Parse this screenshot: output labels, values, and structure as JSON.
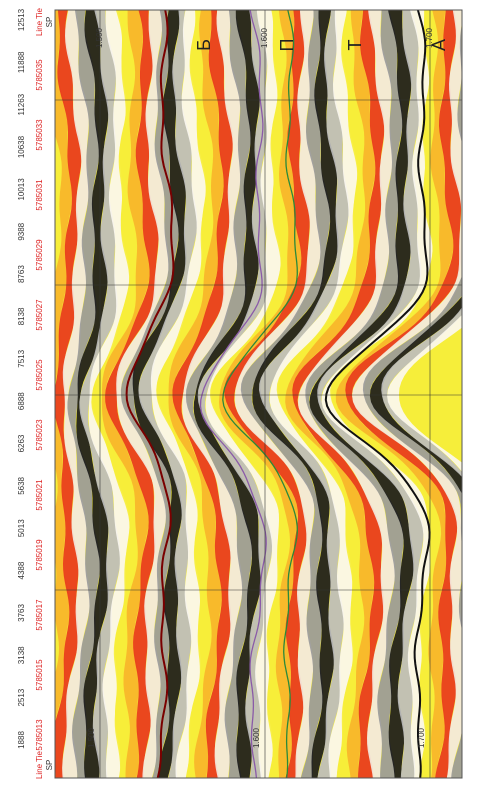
{
  "header_top": {
    "label": "Line Tie",
    "sp": "SP"
  },
  "header_bottom": {
    "label": "Line Tie",
    "sp": "SP"
  },
  "lines": [
    "5785013",
    "5785015",
    "5785017",
    "5785019",
    "5785021",
    "5785023",
    "5785025",
    "5785027",
    "5785029",
    "5785031",
    "5785033",
    "5785035"
  ],
  "shotpoints": [
    "1888",
    "2513",
    "3138",
    "3763",
    "4388",
    "5013",
    "5638",
    "6263",
    "6888",
    "7513",
    "8138",
    "8763",
    "9388",
    "10013",
    "10638",
    "11263",
    "11888",
    "12513"
  ],
  "time_labels": {
    "top": [
      "1.500",
      "1.600",
      "1.700"
    ],
    "bottom": [
      "1.500",
      "1.600",
      "1.700"
    ]
  },
  "horizons": [
    "Б",
    "П",
    "Т",
    "А"
  ]
}
